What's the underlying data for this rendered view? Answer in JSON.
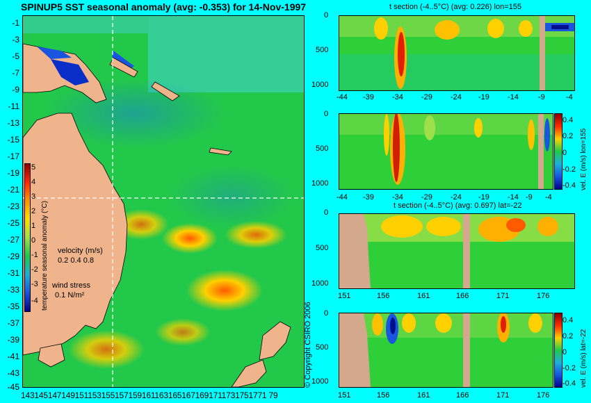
{
  "map": {
    "title": "SPINUP5 SST seasonal anomaly (avg: -0.353) for 14-Nov-1997",
    "lat_ticks": [
      "-1",
      "-3",
      "-5",
      "-7",
      "-9",
      "-11",
      "-13",
      "-15",
      "-17",
      "-19",
      "-21",
      "-23",
      "-25",
      "-27",
      "-29",
      "-31",
      "-33",
      "-35",
      "-37",
      "-39",
      "-41",
      "-43",
      "-45"
    ],
    "lon_ticks": "1431451471491511531551571591611631651671691711731751771 79",
    "colorbar_label": "temperature seasonal anomaly (°C)",
    "colorbar_ticks": [
      "5",
      "4",
      "3",
      "2",
      "1",
      "0",
      "-1",
      "-2",
      "-3",
      "-4"
    ],
    "velocity_label": "velocity (m/s)",
    "velocity_scale": "0.2 0.4 0.8",
    "wind_label": "wind stress",
    "wind_scale": "0.1 N/m²",
    "copyright": "© Copyright CSIRO 2006"
  },
  "panels": [
    {
      "title": "t section (-4..5°C) (avg: 0.226) lon=155",
      "x_ticks": [
        "-44",
        "-39",
        "-34",
        "-29",
        "-24",
        "-19",
        "-14",
        "-9",
        "-4"
      ],
      "y_ticks": [
        "0",
        "500",
        "1000"
      ],
      "side_label": ""
    },
    {
      "title": "",
      "x_ticks": [
        "-44",
        "-39",
        "-34",
        "-29",
        "-24",
        "-19",
        "-14",
        "-9",
        "-4"
      ],
      "y_ticks": [
        "0",
        "500",
        "1000"
      ],
      "side_label": "vel. E (m/s) lon=155",
      "cb_ticks": [
        "0.4",
        "0.2",
        "0",
        "-0.2",
        "-0.4"
      ]
    },
    {
      "title": "t section (-4..5°C) (avg: 0.697) lat=-22",
      "x_ticks": [
        "151",
        "156",
        "161",
        "166",
        "171",
        "176"
      ],
      "y_ticks": [
        "0",
        "500",
        "1000"
      ],
      "side_label": ""
    },
    {
      "title": "",
      "x_ticks": [
        "151",
        "156",
        "161",
        "166",
        "171",
        "176"
      ],
      "y_ticks": [
        "0",
        "500",
        "1000"
      ],
      "side_label": "vel. E (m/s) lat=-22",
      "cb_ticks": [
        "0.4",
        "0.2",
        "0",
        "-0.2",
        "-0.4"
      ]
    }
  ],
  "colors": {
    "background": "#00ffff",
    "land": "#f0b48c",
    "ocean": "#22c84a"
  }
}
